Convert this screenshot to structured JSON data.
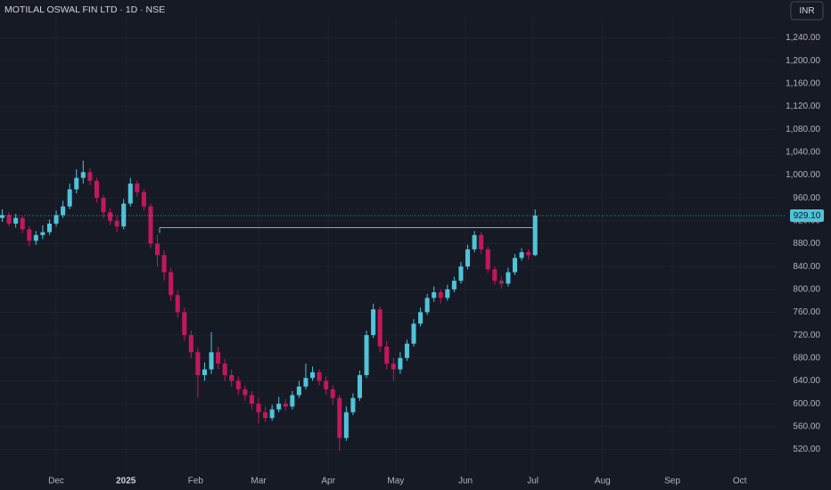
{
  "chart_data": {
    "type": "candlestick",
    "title": "MOTILAL OSWAL FIN LTD · 1D · NSE",
    "currency": "INR",
    "up_color": "#4fc3d9",
    "down_color": "#c2185b",
    "x": [
      -24,
      -21,
      -18,
      -15,
      -12,
      -9,
      -6,
      -3,
      0,
      3,
      6,
      9,
      12,
      15,
      18,
      21,
      24,
      27,
      30,
      33,
      36,
      39,
      42,
      45,
      48,
      51,
      54,
      57,
      60,
      63,
      66,
      69,
      72,
      75,
      78,
      81,
      84,
      87,
      90,
      93,
      96,
      99,
      102,
      105,
      108,
      111,
      114,
      117,
      120,
      123,
      126,
      129,
      132,
      135,
      138,
      141,
      144,
      147,
      150,
      153,
      156,
      159,
      162,
      165,
      168,
      171,
      174,
      177,
      180,
      183,
      186,
      189,
      192,
      195,
      198,
      201,
      204,
      207,
      210,
      213
    ],
    "open": [
      925,
      930,
      915,
      925,
      905,
      885,
      895,
      900,
      915,
      930,
      945,
      975,
      995,
      1005,
      990,
      960,
      935,
      920,
      910,
      950,
      985,
      970,
      945,
      880,
      860,
      830,
      790,
      760,
      720,
      690,
      650,
      660,
      690,
      670,
      650,
      640,
      625,
      615,
      600,
      585,
      575,
      590,
      600,
      595,
      615,
      630,
      645,
      655,
      640,
      625,
      610,
      540,
      585,
      610,
      650,
      720,
      765,
      700,
      670,
      660,
      680,
      705,
      740,
      760,
      785,
      795,
      785,
      800,
      815,
      840,
      870,
      895,
      870,
      835,
      815,
      810,
      830,
      855,
      865,
      860
    ],
    "high": [
      940,
      935,
      932,
      928,
      910,
      902,
      912,
      922,
      938,
      955,
      985,
      1010,
      1025,
      1012,
      995,
      965,
      942,
      928,
      958,
      995,
      990,
      975,
      950,
      895,
      868,
      838,
      798,
      768,
      728,
      698,
      672,
      725,
      700,
      678,
      660,
      648,
      632,
      622,
      610,
      595,
      598,
      612,
      608,
      622,
      640,
      670,
      665,
      660,
      648,
      632,
      615,
      595,
      618,
      658,
      728,
      775,
      770,
      710,
      680,
      690,
      712,
      748,
      768,
      792,
      805,
      800,
      808,
      822,
      848,
      878,
      902,
      900,
      875,
      840,
      822,
      838,
      862,
      872,
      870,
      940
    ],
    "low": [
      918,
      910,
      908,
      898,
      875,
      878,
      888,
      895,
      910,
      925,
      940,
      968,
      985,
      982,
      952,
      925,
      912,
      900,
      905,
      945,
      962,
      938,
      872,
      840,
      815,
      780,
      750,
      710,
      680,
      610,
      640,
      652,
      660,
      640,
      630,
      615,
      605,
      590,
      565,
      568,
      570,
      585,
      588,
      590,
      610,
      625,
      640,
      632,
      615,
      598,
      517,
      535,
      580,
      605,
      645,
      715,
      690,
      660,
      640,
      652,
      675,
      700,
      735,
      755,
      778,
      775,
      780,
      795,
      810,
      835,
      865,
      862,
      828,
      808,
      802,
      805,
      825,
      850,
      852,
      858
    ],
    "close": [
      930,
      915,
      925,
      905,
      885,
      895,
      900,
      915,
      930,
      945,
      975,
      995,
      1005,
      990,
      960,
      935,
      920,
      910,
      950,
      985,
      970,
      945,
      880,
      860,
      830,
      790,
      760,
      720,
      690,
      650,
      660,
      690,
      670,
      650,
      640,
      625,
      615,
      600,
      585,
      575,
      590,
      600,
      595,
      615,
      630,
      645,
      655,
      640,
      625,
      610,
      540,
      585,
      610,
      650,
      720,
      765,
      700,
      670,
      660,
      680,
      705,
      740,
      760,
      785,
      795,
      785,
      800,
      815,
      840,
      870,
      895,
      870,
      835,
      815,
      810,
      830,
      855,
      865,
      860,
      929.1
    ],
    "xlim": [
      -25,
      320
    ],
    "xticks": [
      {
        "value": 0,
        "label": "Dec"
      },
      {
        "value": 31,
        "label": "2025"
      },
      {
        "value": 62,
        "label": "Feb"
      },
      {
        "value": 90,
        "label": "Mar"
      },
      {
        "value": 121,
        "label": "Apr"
      },
      {
        "value": 151,
        "label": "May"
      },
      {
        "value": 182,
        "label": "Jun"
      },
      {
        "value": 212,
        "label": "Jul"
      },
      {
        "value": 243,
        "label": "Aug"
      },
      {
        "value": 274,
        "label": "Sep"
      },
      {
        "value": 304,
        "label": "Oct"
      }
    ],
    "ylim": [
      502,
      1275
    ],
    "yticks": [
      {
        "value": 520,
        "label": "520.00"
      },
      {
        "value": 560,
        "label": "560.00"
      },
      {
        "value": 600,
        "label": "600.00"
      },
      {
        "value": 640,
        "label": "640.00"
      },
      {
        "value": 680,
        "label": "680.00"
      },
      {
        "value": 720,
        "label": "720.00"
      },
      {
        "value": 760,
        "label": "760.00"
      },
      {
        "value": 800,
        "label": "800.00"
      },
      {
        "value": 840,
        "label": "840.00"
      },
      {
        "value": 880,
        "label": "880.00"
      },
      {
        "value": 920,
        "label": "920.00"
      },
      {
        "value": 960,
        "label": "960.00"
      },
      {
        "value": 1000,
        "label": "1,000.00"
      },
      {
        "value": 1040,
        "label": "1,040.00"
      },
      {
        "value": 1080,
        "label": "1,080.00"
      },
      {
        "value": 1120,
        "label": "1,120.00"
      },
      {
        "value": 1160,
        "label": "1,160.00"
      },
      {
        "value": 1200,
        "label": "1,200.00"
      },
      {
        "value": 1240,
        "label": "1,240.00"
      }
    ],
    "last_price": {
      "value": 929.1,
      "label": "929.10"
    },
    "reference_line": {
      "value": 908,
      "x": [
        46,
        213
      ]
    }
  }
}
